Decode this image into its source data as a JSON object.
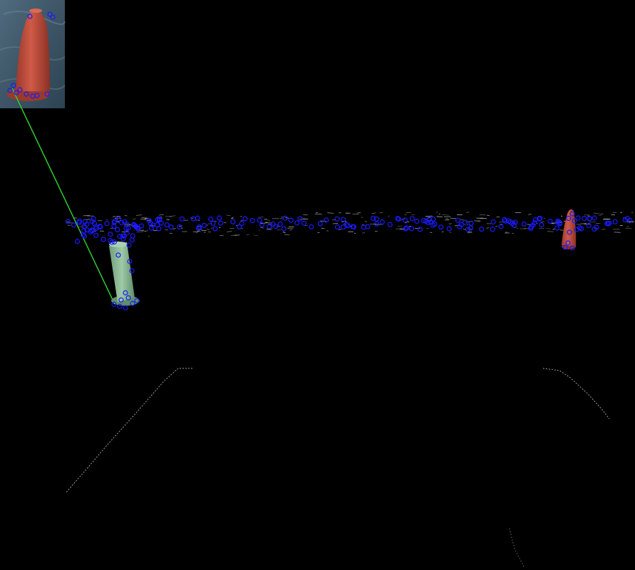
{
  "image": {
    "description_free": true,
    "background_color": "#000000"
  },
  "colors": {
    "keypoint": "#1a1aff",
    "match_line": "#2ecc2e",
    "red_buoy": "#c8503f",
    "red_buoy_shade": "#8f3428",
    "green_buoy": "#8fbf9a",
    "green_buoy_shade": "#5e8f6a",
    "water_inset": "#3d5566",
    "edge_noise": "#cfcfcf"
  },
  "icons": {
    "template_inset": "red-buoy-template-icon",
    "red_buoy": "red-buoy-icon",
    "green_buoy": "green-buoy-icon"
  }
}
